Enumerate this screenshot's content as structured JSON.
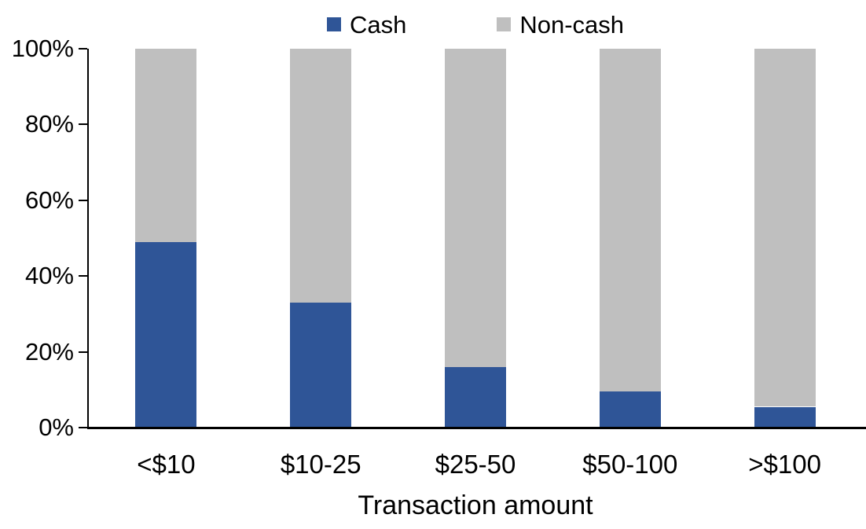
{
  "chart_data": {
    "type": "bar",
    "variant": "stacked-100-percent",
    "title": "",
    "xlabel": "Transaction amount",
    "ylabel": "",
    "categories": [
      "<$10",
      "$10-25",
      "$25-50",
      "$50-100",
      ">$100"
    ],
    "series": [
      {
        "name": "Cash",
        "color": "#2F5597",
        "values": [
          49,
          33,
          16,
          9.5,
          5.5
        ]
      },
      {
        "name": "Non-cash",
        "color": "#BFBFBF",
        "values": [
          51,
          67,
          84,
          90.5,
          94.5
        ]
      }
    ],
    "ylim": [
      0,
      100
    ],
    "y_ticks": [
      "0%",
      "20%",
      "40%",
      "60%",
      "80%",
      "100%"
    ],
    "legend_position": "top-center",
    "grid": false,
    "axis_color": "#000000"
  }
}
